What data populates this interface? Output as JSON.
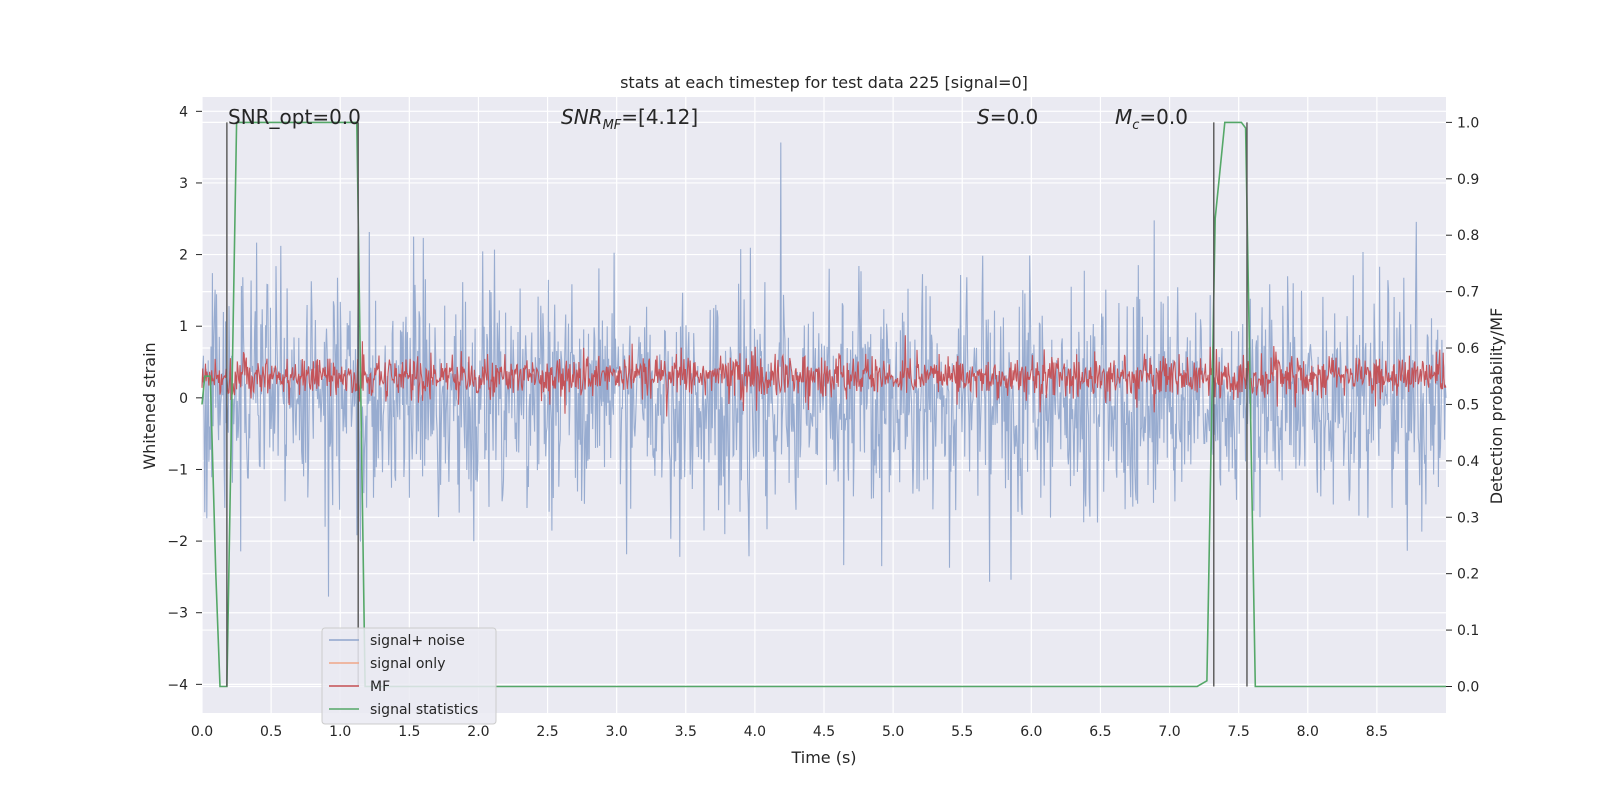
{
  "chart_data": {
    "type": "line",
    "title": "stats at each timestep for test data 225 [signal=0]",
    "xlabel": "Time (s)",
    "ylabel": "Whitened strain",
    "ylabel_right": "Detection probability/MF",
    "xlim": [
      0.0,
      9.0
    ],
    "ylim": [
      -4.4,
      4.2
    ],
    "ylim_right": [
      -0.047,
      1.045
    ],
    "x_ticks": [
      "0.0",
      "0.5",
      "1.0",
      "1.5",
      "2.0",
      "2.5",
      "3.0",
      "3.5",
      "4.0",
      "4.5",
      "5.0",
      "5.5",
      "6.0",
      "6.5",
      "7.0",
      "7.5",
      "8.0",
      "8.5"
    ],
    "y_ticks_left": [
      "4",
      "3",
      "2",
      "1",
      "0",
      "−1",
      "−2",
      "−3",
      "−4"
    ],
    "y_ticks_right": [
      "1.0",
      "0.9",
      "0.8",
      "0.7",
      "0.6",
      "0.5",
      "0.4",
      "0.3",
      "0.2",
      "0.1",
      "0.0"
    ],
    "grid": true,
    "legend_position": "lower-left",
    "annotations": {
      "snr_opt": "SNR_opt=0.0",
      "snr_mf_main": "SNR",
      "snr_mf_sub": "MF",
      "snr_mf_value": "=[4.12]",
      "s_var": "S",
      "s_value": "=0.0",
      "mc_main": "M",
      "mc_sub": "c",
      "mc_value": "=0.0"
    },
    "series": [
      {
        "name": "signal+ noise",
        "color": "#8fa5cc",
        "kind": "noise",
        "mean": 0.0,
        "sd": 0.75
      },
      {
        "name": "signal only",
        "color": "#f0a688",
        "kind": "flat",
        "values": []
      },
      {
        "name": "MF",
        "color": "#c44e52",
        "kind": "noise",
        "mean": 0.3,
        "sd": 0.14
      },
      {
        "name": "signal statistics",
        "color": "#55a868",
        "axis": "right",
        "x": [
          0.0,
          0.02,
          0.06,
          0.1,
          0.13,
          0.18,
          0.25,
          1.0,
          1.12,
          1.18,
          7.2,
          7.27,
          7.33,
          7.4,
          7.47,
          7.52,
          7.55,
          7.62,
          9.0
        ],
        "y": [
          0.5,
          0.55,
          0.55,
          0.2,
          0.0,
          0.0,
          1.0,
          1.0,
          1.0,
          0.0,
          0.0,
          0.01,
          0.83,
          1.0,
          1.0,
          1.0,
          0.99,
          0.0,
          0.0
        ]
      }
    ],
    "vertical_markers": [
      0.18,
      1.13,
      7.32,
      7.56
    ]
  }
}
